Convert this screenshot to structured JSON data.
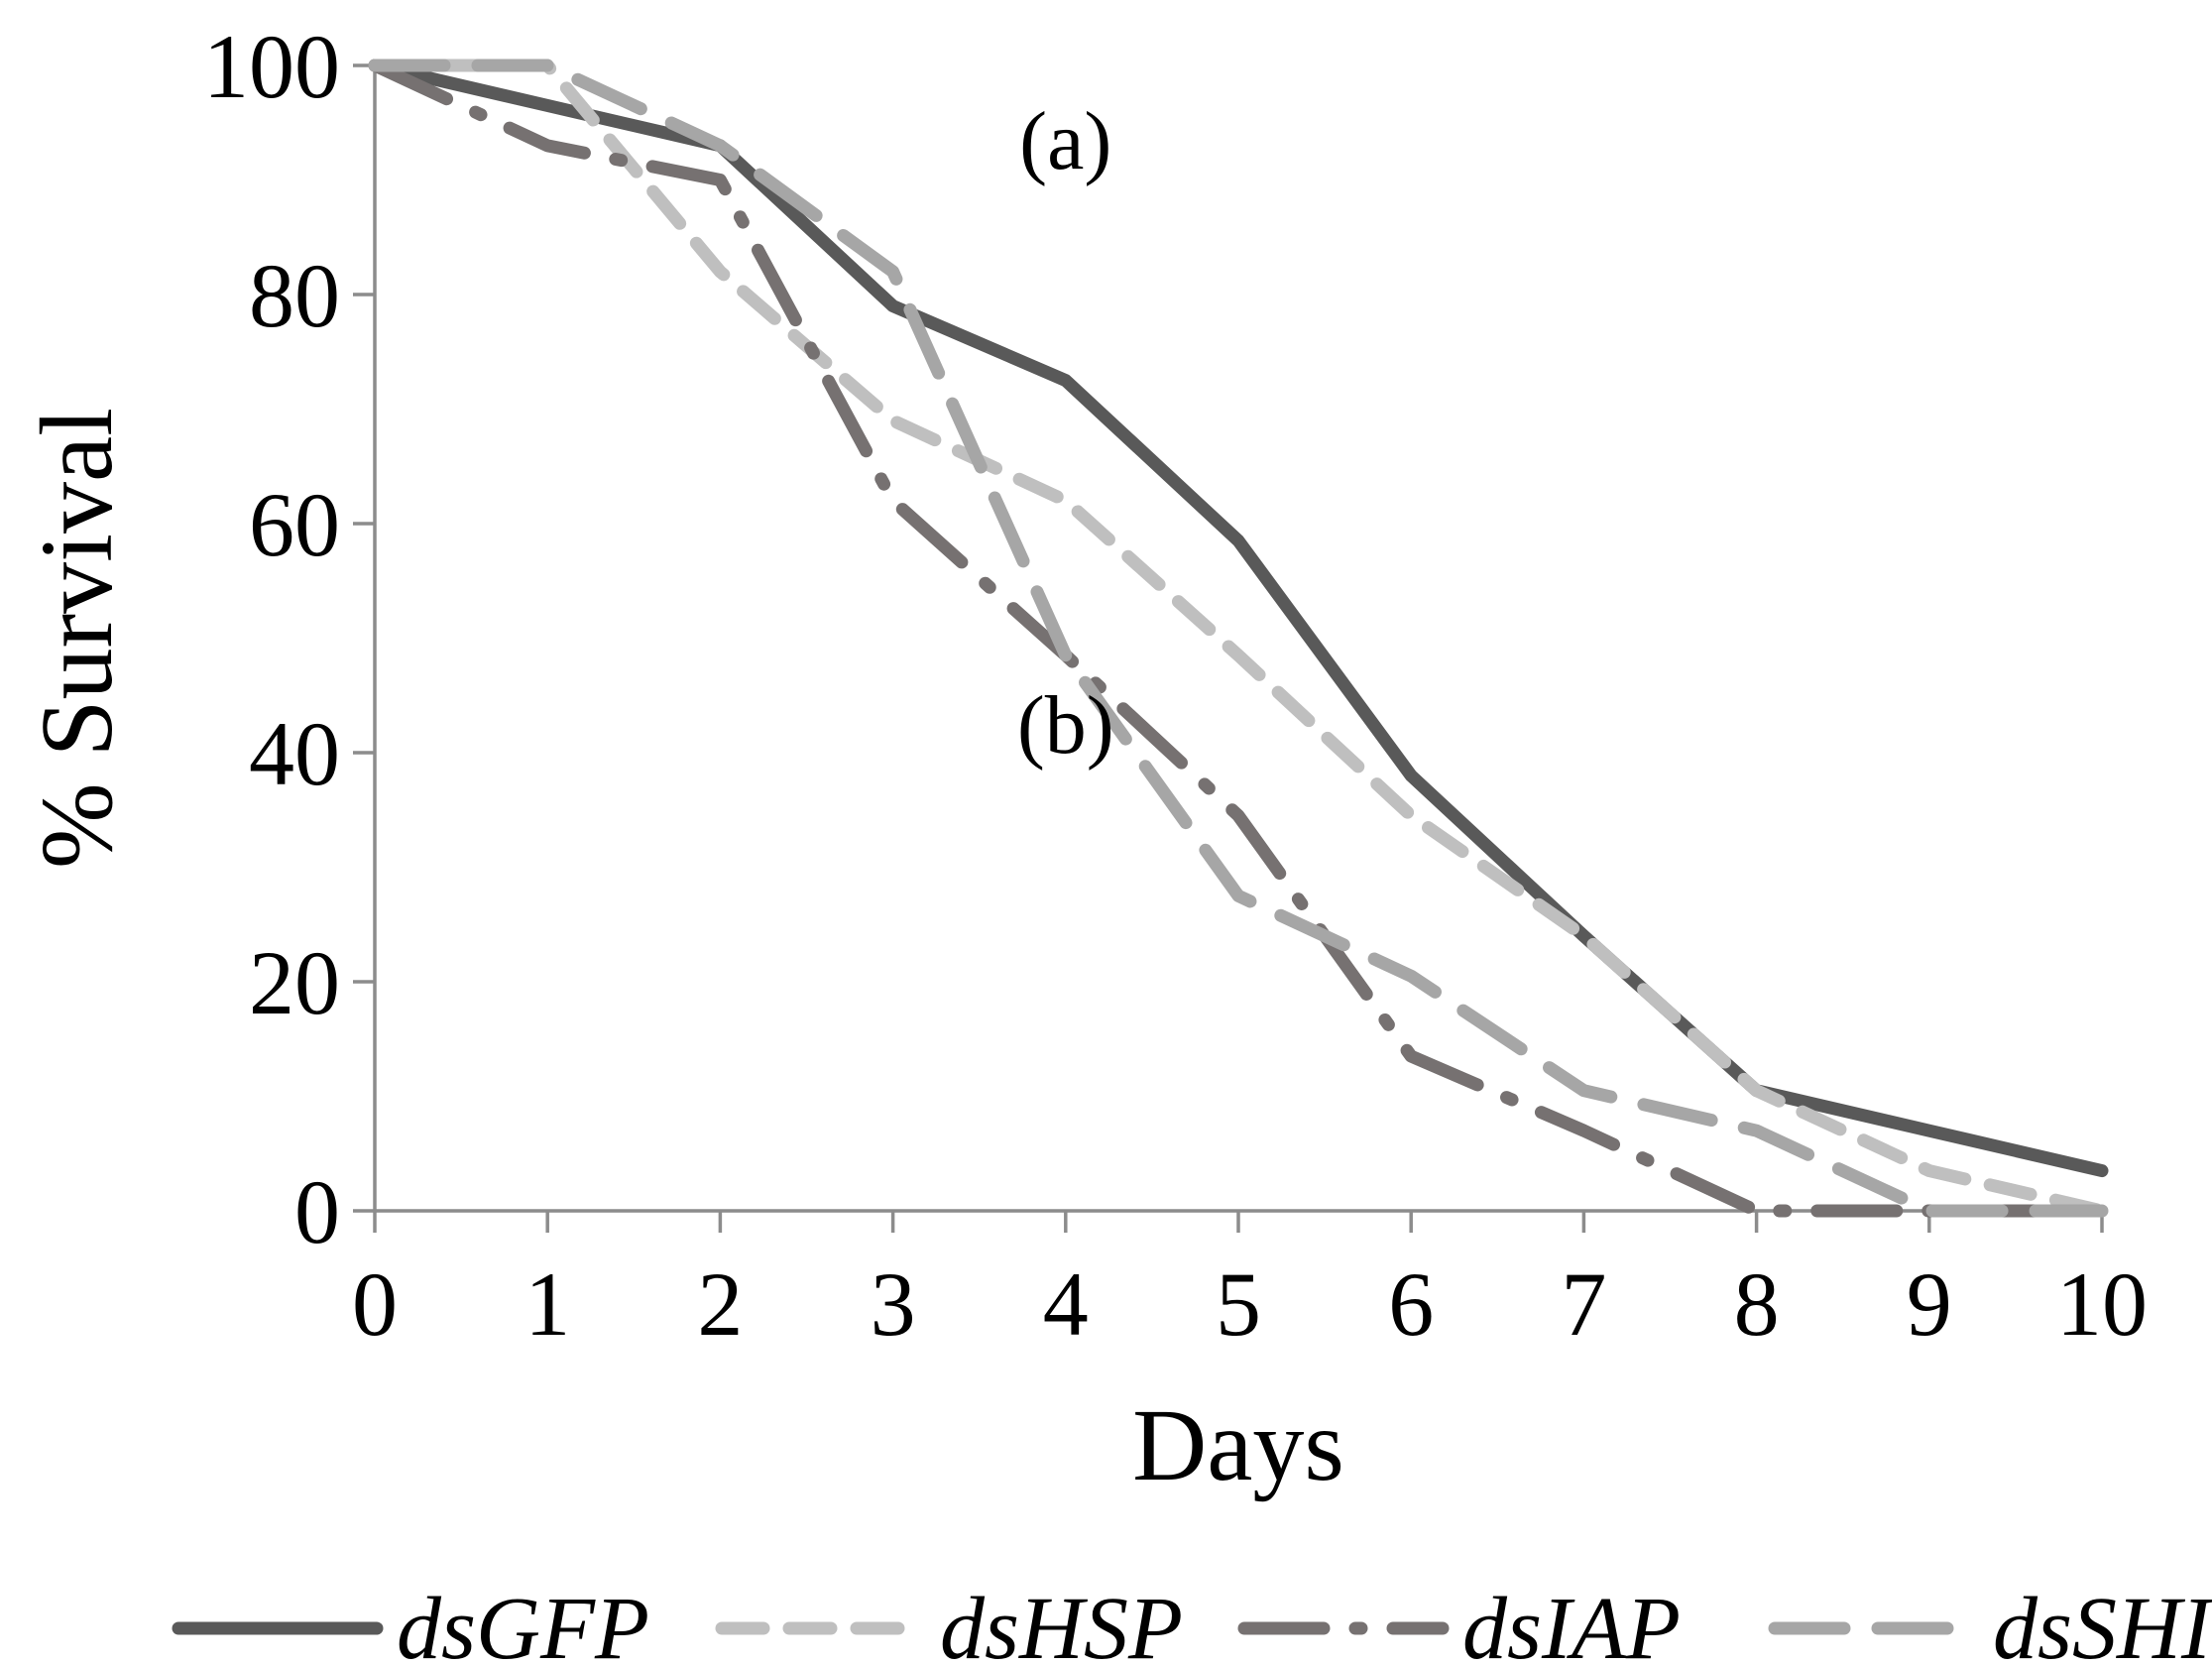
{
  "chart_data": {
    "type": "line",
    "title": "",
    "xlabel": "Days",
    "ylabel": "% Survival",
    "xlim": [
      0,
      10
    ],
    "ylim": [
      0,
      100
    ],
    "x_ticks": [
      "0",
      "1",
      "2",
      "3",
      "4",
      "5",
      "6",
      "7",
      "8",
      "9",
      "10"
    ],
    "y_ticks": [
      "0",
      "20",
      "40",
      "60",
      "80",
      "100"
    ],
    "grid": false,
    "legend_position": "bottom",
    "x": [
      0,
      1,
      2,
      3,
      4,
      5,
      6,
      7,
      8,
      9,
      10
    ],
    "series": [
      {
        "name": "dsGFP",
        "values": [
          100,
          96.5,
          93,
          79,
          72.5,
          58.5,
          38,
          24,
          10.5,
          7,
          3.5
        ],
        "color": "#595959",
        "dash": "solid"
      },
      {
        "name": "dsHSP",
        "values": [
          100,
          100,
          82,
          69,
          62,
          48.5,
          34.5,
          24,
          10.5,
          3.5,
          0
        ],
        "color": "#bfbfbf",
        "dash": "short-dash"
      },
      {
        "name": "dsIAP",
        "values": [
          100,
          93,
          90,
          62,
          48.5,
          34.5,
          13.5,
          7,
          0,
          0,
          0
        ],
        "color": "#767171",
        "dash": "long-dash-dot"
      },
      {
        "name": "dsSHI",
        "values": [
          100,
          100,
          93,
          82,
          48.5,
          27.5,
          20.5,
          10.5,
          7,
          0,
          0
        ],
        "color": "#a6a6a6",
        "dash": "long-dash"
      }
    ],
    "annotations": [
      {
        "text": "(a)",
        "x": 4,
        "y": 91
      },
      {
        "text": "(b)",
        "x": 4,
        "y": 40
      }
    ]
  }
}
